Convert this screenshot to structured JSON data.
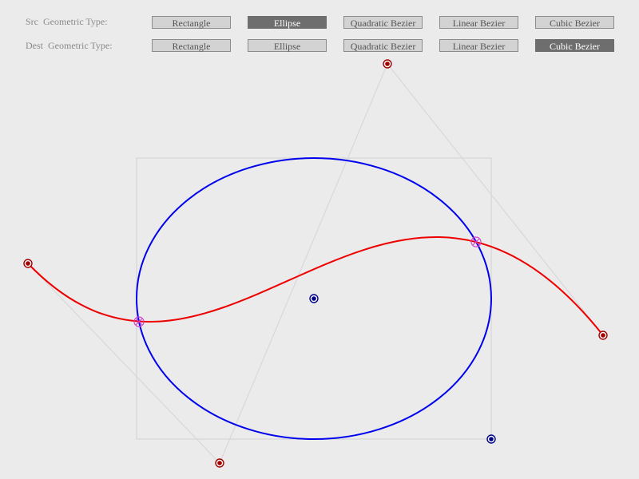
{
  "toolbar": {
    "src": {
      "label": "Src  Geometric Type:",
      "options": [
        "Rectangle",
        "Ellipse",
        "Quadratic Bezier",
        "Linear Bezier",
        "Cubic Bezier"
      ],
      "selected": "Ellipse"
    },
    "dest": {
      "label": "Dest  Geometric Type:",
      "options": [
        "Rectangle",
        "Ellipse",
        "Quadratic Bezier",
        "Linear Bezier",
        "Cubic Bezier"
      ],
      "selected": "Cubic Bezier"
    }
  },
  "colors": {
    "background": "#ebebeb",
    "ellipse_stroke": "#0000ee",
    "curve_stroke": "#ee0000",
    "bounding_box": "#d6d6d6",
    "control_lines": "#d8d8d8",
    "source_handle": "#00008b",
    "dest_handle": "#a30000",
    "intersection_marker": "#d040d0"
  },
  "icons": {
    "source_handle": "dot-in-ring",
    "dest_handle": "dot-in-ring",
    "intersection": "circled-x"
  }
}
